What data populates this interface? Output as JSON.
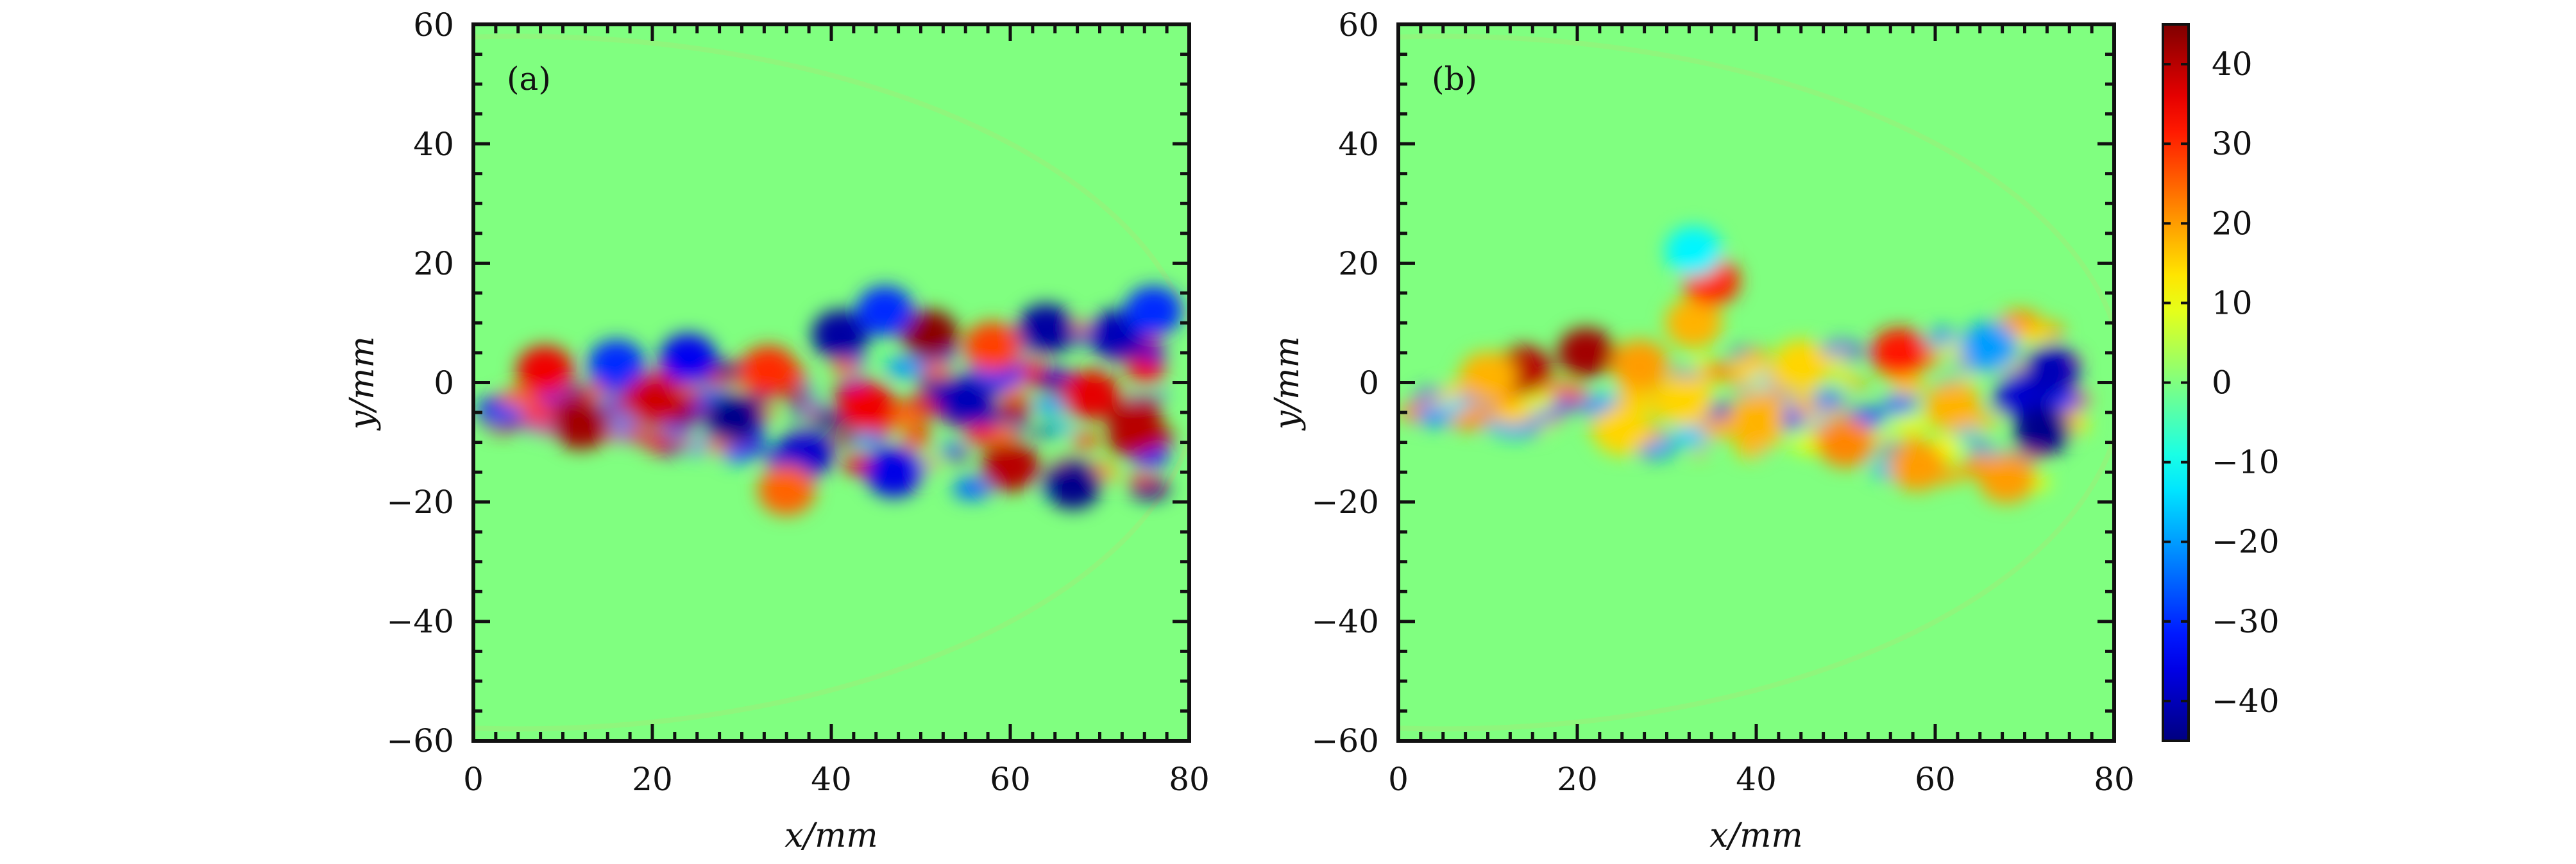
{
  "chart_data": [
    {
      "type": "heatmap",
      "panel_label": "(a)",
      "xlabel": "x/mm",
      "ylabel": "y/mm",
      "xlim": [
        0,
        80
      ],
      "ylim": [
        -60,
        60
      ],
      "xticks": [
        0,
        20,
        40,
        60,
        80
      ],
      "yticks": [
        -60,
        -40,
        -20,
        0,
        20,
        40,
        60
      ],
      "background_value": 0,
      "jet_region": {
        "x_start": 0,
        "x_end": 78,
        "half_width_at_end": 18,
        "center_y": -5
      },
      "blobs": [
        {
          "x": 12,
          "y": -7,
          "v": 42
        },
        {
          "x": 8,
          "y": 2,
          "v": 35
        },
        {
          "x": 16,
          "y": 3,
          "v": -30
        },
        {
          "x": 20,
          "y": -3,
          "v": 38
        },
        {
          "x": 24,
          "y": 4,
          "v": -35
        },
        {
          "x": 29,
          "y": -6,
          "v": -44
        },
        {
          "x": 33,
          "y": 2,
          "v": 30
        },
        {
          "x": 37,
          "y": -12,
          "v": -38
        },
        {
          "x": 41,
          "y": 8,
          "v": -42
        },
        {
          "x": 44,
          "y": -4,
          "v": 35
        },
        {
          "x": 47,
          "y": -15,
          "v": -36
        },
        {
          "x": 51,
          "y": 8,
          "v": 44
        },
        {
          "x": 55,
          "y": -3,
          "v": -40
        },
        {
          "x": 58,
          "y": 6,
          "v": 28
        },
        {
          "x": 60,
          "y": -14,
          "v": 40
        },
        {
          "x": 64,
          "y": 9,
          "v": -42
        },
        {
          "x": 67,
          "y": -17,
          "v": -44
        },
        {
          "x": 69,
          "y": -2,
          "v": 36
        },
        {
          "x": 72,
          "y": 8,
          "v": -40
        },
        {
          "x": 74,
          "y": -8,
          "v": 40
        },
        {
          "x": 76,
          "y": 12,
          "v": -30
        },
        {
          "x": 35,
          "y": -18,
          "v": 25
        },
        {
          "x": 46,
          "y": 12,
          "v": -30
        }
      ]
    },
    {
      "type": "heatmap",
      "panel_label": "(b)",
      "xlabel": "x/mm",
      "ylabel": "y/mm",
      "xlim": [
        0,
        80
      ],
      "ylim": [
        -60,
        60
      ],
      "xticks": [
        0,
        20,
        40,
        60,
        80
      ],
      "yticks": [
        -60,
        -40,
        -20,
        0,
        20,
        40,
        60
      ],
      "background_value": 0,
      "jet_region": {
        "x_start": 0,
        "x_end": 76,
        "half_width_at_end": 16,
        "center_y": -4
      },
      "blobs": [
        {
          "x": 14,
          "y": 2,
          "v": 40
        },
        {
          "x": 21,
          "y": 5,
          "v": 42
        },
        {
          "x": 10,
          "y": 1,
          "v": 18
        },
        {
          "x": 27,
          "y": 3,
          "v": 20
        },
        {
          "x": 33,
          "y": 10,
          "v": 18
        },
        {
          "x": 35,
          "y": 17,
          "v": 30
        },
        {
          "x": 33,
          "y": 22,
          "v": -12
        },
        {
          "x": 32,
          "y": -3,
          "v": 15
        },
        {
          "x": 40,
          "y": -6,
          "v": 18
        },
        {
          "x": 45,
          "y": 3,
          "v": 15
        },
        {
          "x": 50,
          "y": -10,
          "v": 22
        },
        {
          "x": 56,
          "y": 5,
          "v": 32
        },
        {
          "x": 58,
          "y": -14,
          "v": 20
        },
        {
          "x": 62,
          "y": -4,
          "v": 18
        },
        {
          "x": 66,
          "y": 6,
          "v": -20
        },
        {
          "x": 70,
          "y": -2,
          "v": -38
        },
        {
          "x": 72,
          "y": -8,
          "v": -44
        },
        {
          "x": 73,
          "y": 2,
          "v": -40
        },
        {
          "x": 68,
          "y": -16,
          "v": 20
        },
        {
          "x": 25,
          "y": -8,
          "v": 15
        }
      ]
    }
  ],
  "colorbar": {
    "ticks": [
      40,
      30,
      20,
      10,
      0,
      -10,
      -20,
      -30,
      -40
    ],
    "tick_labels": [
      "40",
      "30",
      "20",
      "10",
      "0",
      "−10",
      "−20",
      "−30",
      "−40"
    ],
    "range": [
      -45,
      45
    ],
    "colormap": "jet"
  },
  "tick_labels": {
    "x": [
      "0",
      "20",
      "40",
      "60",
      "80"
    ],
    "y": [
      "60",
      "40",
      "20",
      "0",
      "−20",
      "−40",
      "−60"
    ]
  },
  "colors": {
    "background_field": "#8cf06e",
    "frame": "#111111"
  }
}
